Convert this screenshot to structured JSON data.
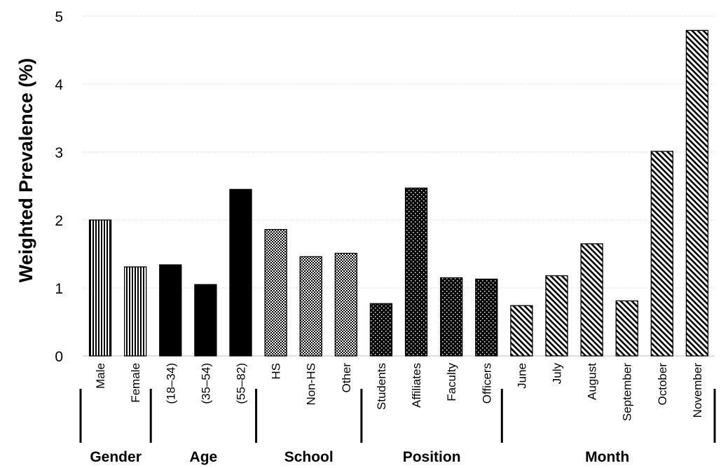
{
  "chart_data": {
    "type": "bar",
    "ylabel": "Weighted Prevalence (%)",
    "ylim": [
      0,
      5
    ],
    "yticks": [
      0,
      1,
      2,
      3,
      4,
      5
    ],
    "grid": true,
    "categories": [
      "Male",
      "Female",
      "(18–34)",
      "(35–54)",
      "(55–82)",
      "HS",
      "Non-HS",
      "Other",
      "Students",
      "Affiliates",
      "Faculty",
      "Officers",
      "June",
      "July",
      "August",
      "September",
      "October",
      "November"
    ],
    "values": [
      2.0,
      1.31,
      1.34,
      1.05,
      2.45,
      1.86,
      1.46,
      1.51,
      0.77,
      2.47,
      1.15,
      1.13,
      0.74,
      1.18,
      1.65,
      0.81,
      3.01,
      4.79
    ],
    "groups": [
      {
        "name": "Gender",
        "start": 0,
        "count": 2,
        "pattern": "vlines"
      },
      {
        "name": "Age",
        "start": 2,
        "count": 3,
        "pattern": "solid"
      },
      {
        "name": "School",
        "start": 5,
        "count": 3,
        "pattern": "checker"
      },
      {
        "name": "Position",
        "start": 8,
        "count": 4,
        "pattern": "dots"
      },
      {
        "name": "Month",
        "start": 12,
        "count": 6,
        "pattern": "diag"
      }
    ]
  }
}
